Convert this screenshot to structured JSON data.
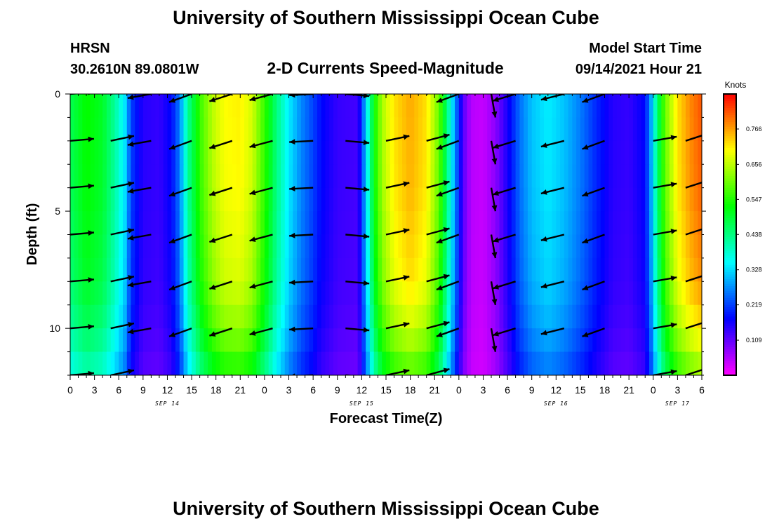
{
  "title": "University of Southern Mississippi Ocean Cube",
  "footer_title": "University of Southern Mississippi Ocean Cube",
  "station": {
    "name": "HRSN",
    "coords": "30.2610N  89.0801W"
  },
  "model": {
    "label": "Model Start Time",
    "start": "09/14/2021 Hour 21"
  },
  "chart_data": {
    "type": "heatmap",
    "title": "2-D Currents Speed-Magnitude",
    "xlabel": "Forecast Time(Z)",
    "ylabel": "Depth (ft)",
    "x_unit": "hours from 2021-09-14 00Z",
    "xlim": [
      0,
      78
    ],
    "ylim": [
      0,
      12
    ],
    "y_inverted": true,
    "x_ticks": [
      {
        "x": 0,
        "label": "0"
      },
      {
        "x": 3,
        "label": "3"
      },
      {
        "x": 6,
        "label": "6"
      },
      {
        "x": 9,
        "label": "9"
      },
      {
        "x": 12,
        "label": "12"
      },
      {
        "x": 15,
        "label": "15"
      },
      {
        "x": 18,
        "label": "18"
      },
      {
        "x": 21,
        "label": "21"
      },
      {
        "x": 24,
        "label": "0"
      },
      {
        "x": 27,
        "label": "3"
      },
      {
        "x": 30,
        "label": "6"
      },
      {
        "x": 33,
        "label": "9"
      },
      {
        "x": 36,
        "label": "12"
      },
      {
        "x": 39,
        "label": "15"
      },
      {
        "x": 42,
        "label": "18"
      },
      {
        "x": 45,
        "label": "21"
      },
      {
        "x": 48,
        "label": "0"
      },
      {
        "x": 51,
        "label": "3"
      },
      {
        "x": 54,
        "label": "6"
      },
      {
        "x": 57,
        "label": "9"
      },
      {
        "x": 60,
        "label": "12"
      },
      {
        "x": 63,
        "label": "15"
      },
      {
        "x": 66,
        "label": "18"
      },
      {
        "x": 69,
        "label": "21"
      },
      {
        "x": 72,
        "label": "0"
      },
      {
        "x": 75,
        "label": "3"
      },
      {
        "x": 78,
        "label": "6"
      }
    ],
    "day_labels": [
      {
        "x": 12,
        "label": "SEP 14"
      },
      {
        "x": 36,
        "label": "SEP 15"
      },
      {
        "x": 60,
        "label": "SEP 16"
      },
      {
        "x": 75,
        "label": "SEP 17"
      }
    ],
    "y_ticks": [
      {
        "y": 0,
        "label": "0"
      },
      {
        "y": 5,
        "label": "5"
      },
      {
        "y": 10,
        "label": "10"
      }
    ],
    "colorbar": {
      "label": "Knots",
      "range": [
        0.0,
        0.875
      ],
      "ticks": [
        0.109,
        0.219,
        0.328,
        0.438,
        0.547,
        0.656,
        0.766
      ]
    },
    "speed_profile": [
      {
        "x": 0,
        "v": 0.47
      },
      {
        "x": 2,
        "v": 0.53
      },
      {
        "x": 4,
        "v": 0.5
      },
      {
        "x": 5.5,
        "v": 0.42
      },
      {
        "x": 6.8,
        "v": 0.33
      },
      {
        "x": 7.5,
        "v": 0.22
      },
      {
        "x": 9,
        "v": 0.15
      },
      {
        "x": 11,
        "v": 0.14
      },
      {
        "x": 12.5,
        "v": 0.18
      },
      {
        "x": 13.5,
        "v": 0.26
      },
      {
        "x": 14.5,
        "v": 0.42
      },
      {
        "x": 16,
        "v": 0.56
      },
      {
        "x": 17.5,
        "v": 0.65
      },
      {
        "x": 19,
        "v": 0.7
      },
      {
        "x": 21,
        "v": 0.71
      },
      {
        "x": 22.5,
        "v": 0.67
      },
      {
        "x": 24,
        "v": 0.56
      },
      {
        "x": 25.5,
        "v": 0.44
      },
      {
        "x": 27,
        "v": 0.34
      },
      {
        "x": 28.5,
        "v": 0.27
      },
      {
        "x": 30,
        "v": 0.22
      },
      {
        "x": 31,
        "v": 0.18
      },
      {
        "x": 33,
        "v": 0.14
      },
      {
        "x": 35.5,
        "v": 0.13
      },
      {
        "x": 36,
        "v": 0.2
      },
      {
        "x": 36.4,
        "v": 0.3
      },
      {
        "x": 37.5,
        "v": 0.52
      },
      {
        "x": 38.5,
        "v": 0.64
      },
      {
        "x": 40,
        "v": 0.72
      },
      {
        "x": 42,
        "v": 0.76
      },
      {
        "x": 44,
        "v": 0.72
      },
      {
        "x": 45.5,
        "v": 0.6
      },
      {
        "x": 46.5,
        "v": 0.45
      },
      {
        "x": 47.5,
        "v": 0.28
      },
      {
        "x": 48.5,
        "v": 0.12
      },
      {
        "x": 49.5,
        "v": 0.05
      },
      {
        "x": 51,
        "v": 0.04
      },
      {
        "x": 52.5,
        "v": 0.08
      },
      {
        "x": 54,
        "v": 0.16
      },
      {
        "x": 55.5,
        "v": 0.25
      },
      {
        "x": 57,
        "v": 0.31
      },
      {
        "x": 59,
        "v": 0.34
      },
      {
        "x": 61,
        "v": 0.31
      },
      {
        "x": 63,
        "v": 0.26
      },
      {
        "x": 65,
        "v": 0.2
      },
      {
        "x": 67,
        "v": 0.15
      },
      {
        "x": 69,
        "v": 0.14
      },
      {
        "x": 71,
        "v": 0.18
      },
      {
        "x": 71.8,
        "v": 0.3
      },
      {
        "x": 72.5,
        "v": 0.45
      },
      {
        "x": 73.5,
        "v": 0.6
      },
      {
        "x": 75,
        "v": 0.72
      },
      {
        "x": 76.5,
        "v": 0.78
      },
      {
        "x": 78,
        "v": 0.82
      }
    ],
    "depth_factor": [
      {
        "y": 0,
        "f": 1.0
      },
      {
        "y": 4,
        "f": 0.99
      },
      {
        "y": 8,
        "f": 0.95
      },
      {
        "y": 10,
        "f": 0.88
      },
      {
        "y": 11,
        "f": 0.82
      },
      {
        "y": 12,
        "f": 0.76
      }
    ],
    "vector_depths": [
      0,
      2,
      4,
      6,
      8,
      10,
      12
    ],
    "vectors": [
      {
        "x": 0,
        "dir": 5
      },
      {
        "x": 5,
        "dir": 12
      },
      {
        "x": 10,
        "dir": 190
      },
      {
        "x": 15,
        "dir": 200
      },
      {
        "x": 20,
        "dir": 198
      },
      {
        "x": 25,
        "dir": 195
      },
      {
        "x": 30,
        "dir": 183
      },
      {
        "x": 34,
        "dir": 355
      },
      {
        "x": 39,
        "dir": 12
      },
      {
        "x": 44,
        "dir": 15
      },
      {
        "x": 48,
        "dir": 200
      },
      {
        "x": 52,
        "dir": 280
      },
      {
        "x": 55,
        "dir": 197
      },
      {
        "x": 61,
        "dir": 194
      },
      {
        "x": 66,
        "dir": 200
      },
      {
        "x": 72,
        "dir": 10
      },
      {
        "x": 76,
        "dir": 18
      }
    ]
  }
}
